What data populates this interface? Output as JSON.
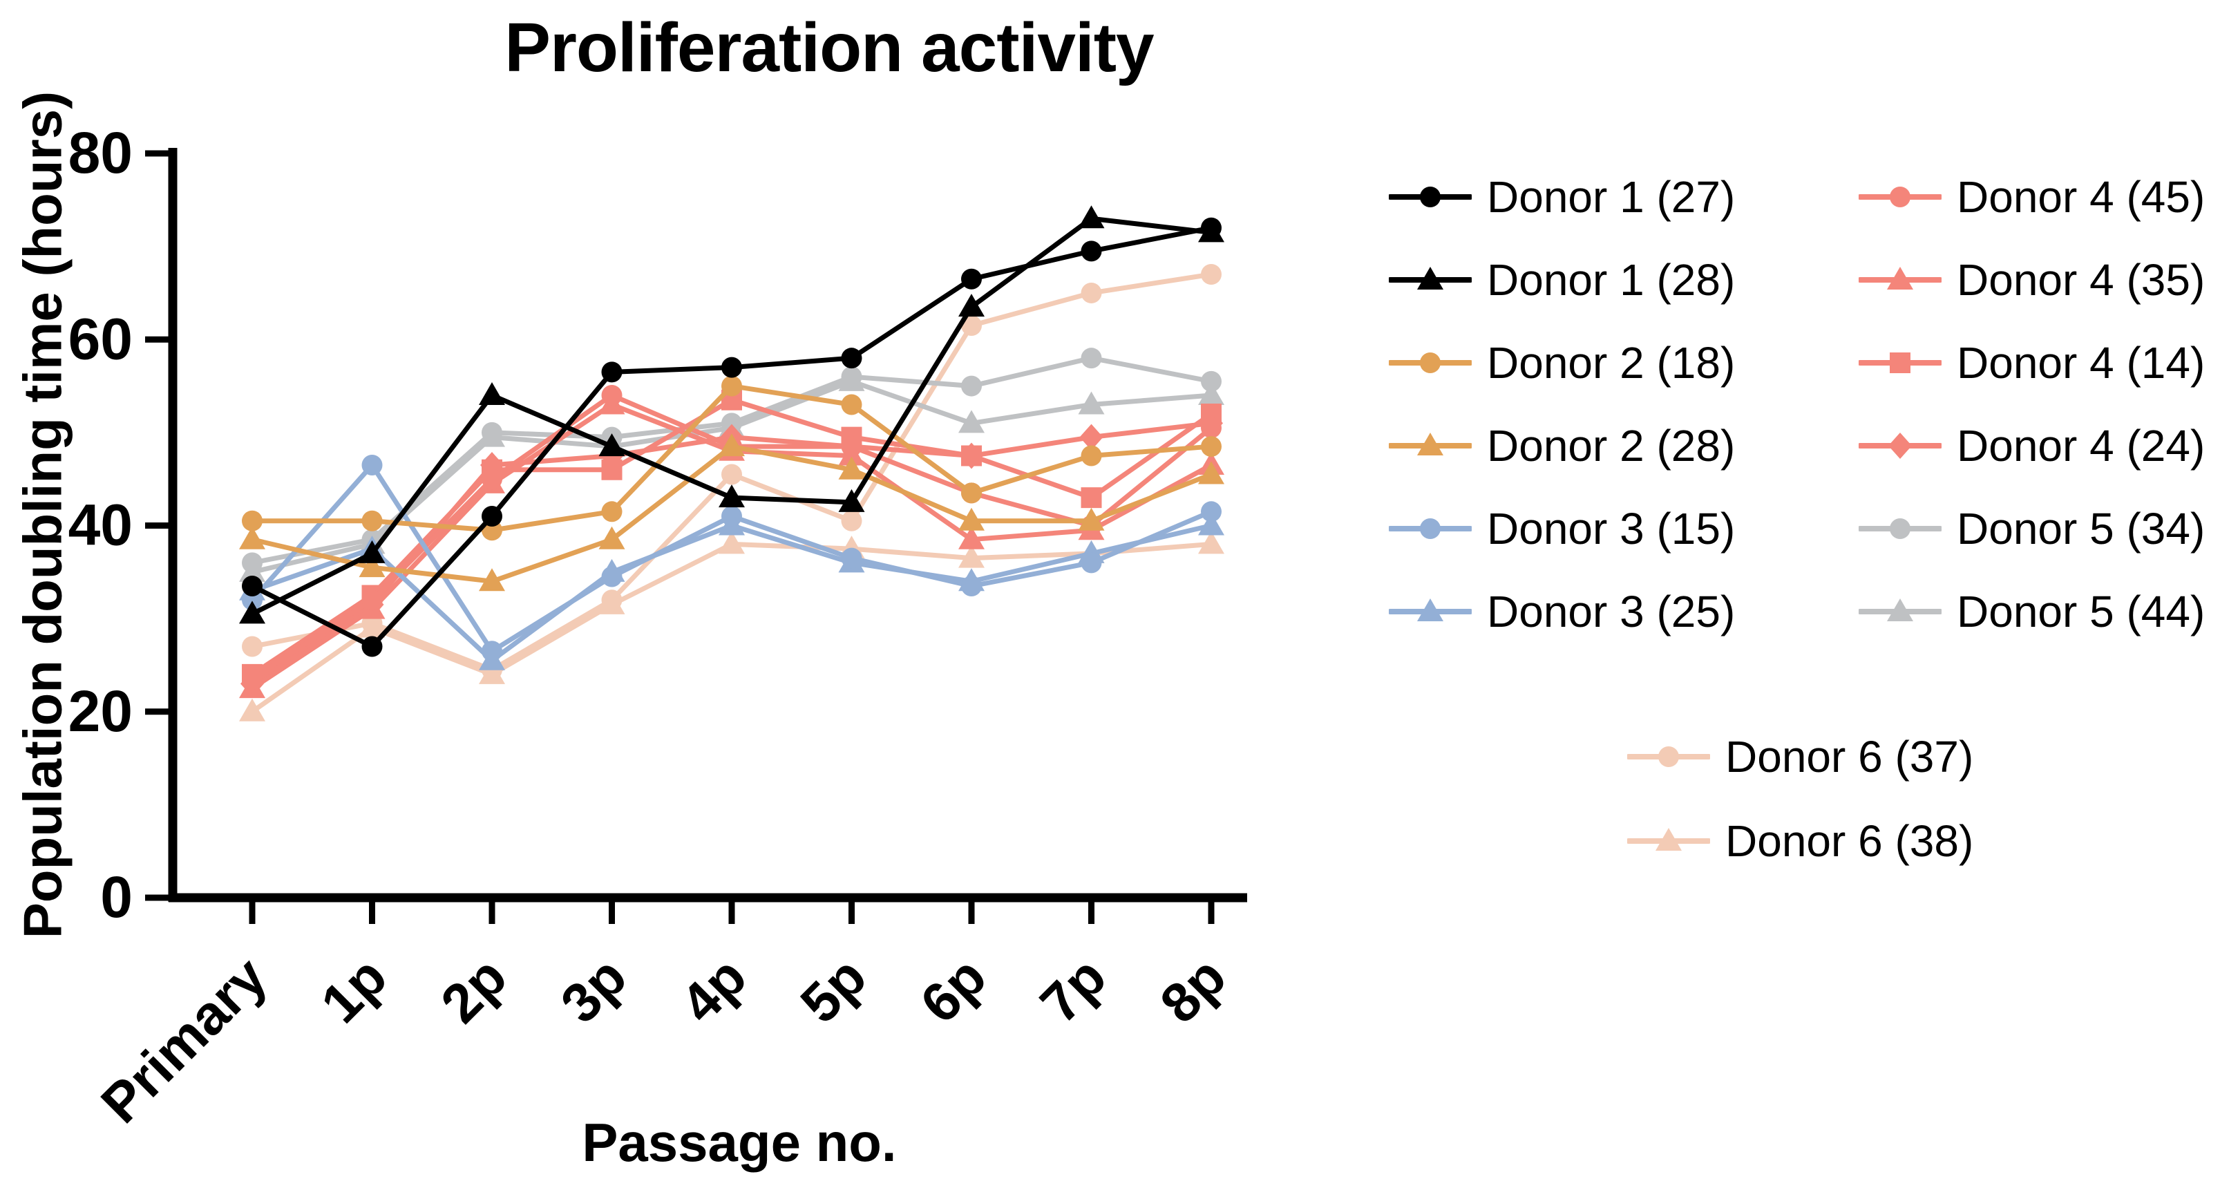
{
  "colors": {
    "background": "#FFFFFF",
    "axis": "#000000",
    "donor1": "#000000",
    "donor2": "#E2A155",
    "donor3": "#93AFD6",
    "donor4": "#F4857A",
    "donor5": "#BFC1C3",
    "donor6": "#F3CBB5"
  },
  "chart_data": {
    "type": "line",
    "title": "Proliferation activity",
    "xlabel": "Passage no.",
    "ylabel": "Population doubling time (hours)",
    "ylim": [
      0,
      80
    ],
    "yticks": [
      0,
      20,
      40,
      60,
      80
    ],
    "grid": false,
    "legend_position": "right",
    "categories": [
      "Primary",
      "1p",
      "2p",
      "3p",
      "4p",
      "5p",
      "6p",
      "7p",
      "8p"
    ],
    "series": [
      {
        "name": "Donor 1 (27)",
        "marker": "circle",
        "color": "#000000",
        "values": [
          33.5,
          27,
          41,
          56.5,
          57,
          58,
          66.5,
          69.5,
          72
        ]
      },
      {
        "name": "Donor 1 (28)",
        "marker": "triangle",
        "color": "#000000",
        "values": [
          30.5,
          37,
          54,
          48.5,
          43,
          42.5,
          63.5,
          73,
          71.5
        ]
      },
      {
        "name": "Donor 2 (18)",
        "marker": "circle",
        "color": "#E2A155",
        "values": [
          40.5,
          40.5,
          39.5,
          41.5,
          55,
          53,
          43.5,
          47.5,
          48.5
        ]
      },
      {
        "name": "Donor 2 (28)",
        "marker": "triangle",
        "color": "#E2A155",
        "values": [
          38.5,
          35.5,
          34,
          38.5,
          48.5,
          46,
          40.5,
          40.5,
          45.5
        ]
      },
      {
        "name": "Donor 3 (15)",
        "marker": "circle",
        "color": "#93AFD6",
        "values": [
          32,
          46.5,
          26.5,
          34.5,
          41,
          36.5,
          33.5,
          36,
          41.5
        ]
      },
      {
        "name": "Donor 3 (25)",
        "marker": "triangle",
        "color": "#93AFD6",
        "values": [
          33,
          37.5,
          25.5,
          35,
          40,
          36,
          34,
          37,
          40
        ]
      },
      {
        "name": "Donor 4 (45)",
        "marker": "circle",
        "color": "#F4857A",
        "values": [
          23.5,
          32,
          45,
          54,
          48.5,
          48.5,
          43.5,
          40,
          50.5
        ]
      },
      {
        "name": "Donor 4 (35)",
        "marker": "triangle",
        "color": "#F4857A",
        "values": [
          22.5,
          31,
          44.5,
          53,
          48,
          47.5,
          38.5,
          39.5,
          46.5
        ]
      },
      {
        "name": "Donor 4 (14)",
        "marker": "square",
        "color": "#F4857A",
        "values": [
          24,
          32.5,
          46,
          46,
          53.5,
          49.5,
          47.5,
          43,
          52
        ]
      },
      {
        "name": "Donor 4 (24)",
        "marker": "diamond",
        "color": "#F4857A",
        "values": [
          23,
          31.5,
          46.5,
          47.5,
          49.5,
          48.5,
          47.5,
          49.5,
          51
        ]
      },
      {
        "name": "Donor 5 (34)",
        "marker": "circle",
        "color": "#BFC1C3",
        "values": [
          36,
          38.5,
          50,
          49.5,
          51,
          56,
          55,
          58,
          55.5
        ]
      },
      {
        "name": "Donor 5 (44)",
        "marker": "triangle",
        "color": "#BFC1C3",
        "values": [
          35,
          38,
          49.5,
          48.5,
          50.5,
          55.5,
          51,
          53,
          54
        ]
      },
      {
        "name": "Donor 6 (37)",
        "marker": "circle",
        "color": "#F3CBB5",
        "values": [
          27,
          29.5,
          24.5,
          32,
          45.5,
          40.5,
          61.5,
          65,
          67
        ]
      },
      {
        "name": "Donor 6 (38)",
        "marker": "triangle",
        "color": "#F3CBB5",
        "values": [
          20,
          29,
          24,
          31.5,
          38,
          37.5,
          36.5,
          37,
          38
        ]
      }
    ],
    "legend_layout": {
      "column1": [
        0,
        1,
        2,
        3,
        4,
        5
      ],
      "column2": [
        6,
        7,
        8,
        9,
        10,
        11
      ],
      "bottom_rows": [
        12,
        13
      ]
    }
  }
}
